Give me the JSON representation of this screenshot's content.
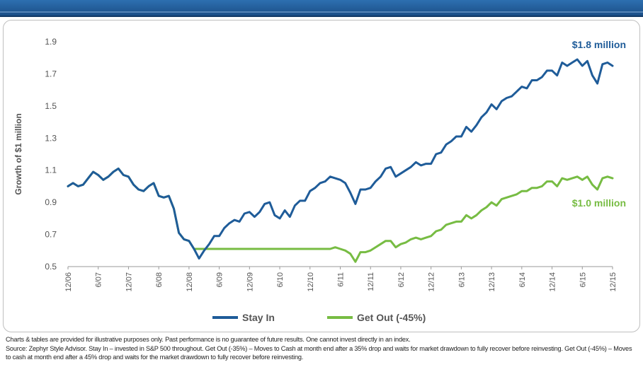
{
  "colors": {
    "stay_in": "#1f5c99",
    "get_out": "#77bc43",
    "header": "#1f5c99"
  },
  "chart_data": {
    "type": "line",
    "ylabel": "Growth of $1 million",
    "ylim": [
      0.5,
      1.9
    ],
    "yticks": [
      "1.9",
      "1.7",
      "1.5",
      "1.3",
      "1.1",
      "0.9",
      "0.7",
      "0.5"
    ],
    "xticks": [
      "12/06",
      "6/07",
      "12/07",
      "6/08",
      "12/08",
      "6/09",
      "12/09",
      "6/10",
      "12/10",
      "6/11",
      "12/11",
      "6/12",
      "12/12",
      "6/13",
      "12/13",
      "6/14",
      "12/14",
      "6/15",
      "12/15"
    ],
    "series": [
      {
        "name": "Stay In",
        "values": [
          1.0,
          1.02,
          1.0,
          1.01,
          1.05,
          1.09,
          1.07,
          1.04,
          1.06,
          1.09,
          1.11,
          1.07,
          1.06,
          1.01,
          0.98,
          0.97,
          1.0,
          1.02,
          0.94,
          0.93,
          0.94,
          0.86,
          0.71,
          0.67,
          0.66,
          0.61,
          0.55,
          0.6,
          0.64,
          0.69,
          0.69,
          0.74,
          0.77,
          0.79,
          0.78,
          0.83,
          0.84,
          0.81,
          0.84,
          0.89,
          0.9,
          0.82,
          0.8,
          0.85,
          0.81,
          0.88,
          0.91,
          0.91,
          0.97,
          0.99,
          1.02,
          1.03,
          1.06,
          1.05,
          1.04,
          1.02,
          0.96,
          0.89,
          0.98,
          0.98,
          0.99,
          1.03,
          1.06,
          1.11,
          1.12,
          1.06,
          1.08,
          1.1,
          1.12,
          1.15,
          1.13,
          1.14,
          1.14,
          1.2,
          1.21,
          1.26,
          1.28,
          1.31,
          1.31,
          1.37,
          1.34,
          1.38,
          1.43,
          1.46,
          1.51,
          1.48,
          1.53,
          1.55,
          1.56,
          1.59,
          1.62,
          1.61,
          1.66,
          1.66,
          1.68,
          1.72,
          1.72,
          1.69,
          1.77,
          1.75,
          1.77,
          1.79,
          1.75,
          1.78,
          1.69,
          1.64,
          1.76,
          1.77,
          1.75
        ]
      },
      {
        "name": "Get Out (-45%)",
        "values": [
          1.0,
          1.02,
          1.0,
          1.01,
          1.05,
          1.09,
          1.07,
          1.04,
          1.06,
          1.09,
          1.11,
          1.07,
          1.06,
          1.01,
          0.98,
          0.97,
          1.0,
          1.02,
          0.94,
          0.93,
          0.94,
          0.86,
          0.71,
          0.67,
          0.66,
          0.61,
          0.61,
          0.61,
          0.61,
          0.61,
          0.61,
          0.61,
          0.61,
          0.61,
          0.61,
          0.61,
          0.61,
          0.61,
          0.61,
          0.61,
          0.61,
          0.61,
          0.61,
          0.61,
          0.61,
          0.61,
          0.61,
          0.61,
          0.61,
          0.61,
          0.61,
          0.61,
          0.61,
          0.62,
          0.61,
          0.6,
          0.58,
          0.53,
          0.59,
          0.59,
          0.6,
          0.62,
          0.64,
          0.66,
          0.66,
          0.62,
          0.64,
          0.65,
          0.67,
          0.68,
          0.67,
          0.68,
          0.69,
          0.72,
          0.73,
          0.76,
          0.77,
          0.78,
          0.78,
          0.82,
          0.8,
          0.82,
          0.85,
          0.87,
          0.9,
          0.88,
          0.92,
          0.93,
          0.94,
          0.95,
          0.97,
          0.97,
          0.99,
          0.99,
          1.0,
          1.03,
          1.03,
          1.0,
          1.05,
          1.04,
          1.05,
          1.06,
          1.04,
          1.06,
          1.01,
          0.98,
          1.05,
          1.06,
          1.05
        ]
      }
    ],
    "annotations": [
      {
        "text": "$1.8 million",
        "series": "Stay In"
      },
      {
        "text": "$1.0 million",
        "series": "Get Out (-45%)"
      }
    ],
    "legend": "bottom"
  },
  "footer": {
    "line1": "Charts & tables are provided for illustrative purposes only. Past performance is no guarantee of future results. One cannot invest directly in an index.",
    "line2": "Source: Zephyr Style Advisor. Stay In – invested in S&P 500 throughout. Get Out (-35%) – Moves to Cash at month end after a 35% drop and waits for market drawdown to fully recover before reinvesting. Get Out (-45%) – Moves to cash at month end after a 45% drop and waits for the market drawdown to fully recover before reinvesting."
  }
}
